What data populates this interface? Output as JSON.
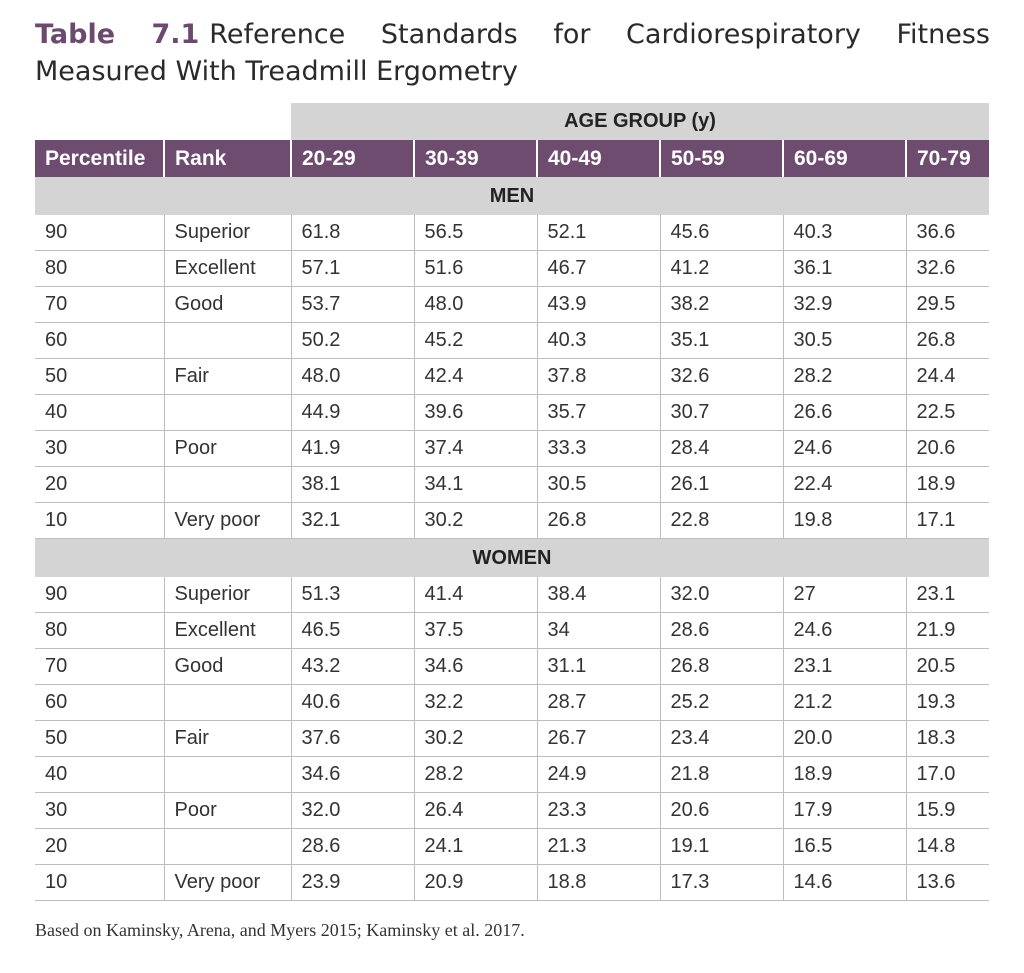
{
  "title": {
    "number": "Table 7.1",
    "text": "Reference Standards for Cardiorespiratory Fitness Measured With Treadmill Ergometry"
  },
  "table": {
    "age_group_label": "AGE GROUP (y)",
    "headers": [
      "Percentile",
      "Rank",
      "20-29",
      "30-39",
      "40-49",
      "50-59",
      "60-69",
      "70-79"
    ],
    "sections": [
      {
        "label": "MEN",
        "rows": [
          [
            "90",
            "Superior",
            "61.8",
            "56.5",
            "52.1",
            "45.6",
            "40.3",
            "36.6"
          ],
          [
            "80",
            "Excellent",
            "57.1",
            "51.6",
            "46.7",
            "41.2",
            "36.1",
            "32.6"
          ],
          [
            "70",
            "Good",
            "53.7",
            "48.0",
            "43.9",
            "38.2",
            "32.9",
            "29.5"
          ],
          [
            "60",
            "",
            "50.2",
            "45.2",
            "40.3",
            "35.1",
            "30.5",
            "26.8"
          ],
          [
            "50",
            "Fair",
            "48.0",
            "42.4",
            "37.8",
            "32.6",
            "28.2",
            "24.4"
          ],
          [
            "40",
            "",
            "44.9",
            "39.6",
            "35.7",
            "30.7",
            "26.6",
            "22.5"
          ],
          [
            "30",
            "Poor",
            "41.9",
            "37.4",
            "33.3",
            "28.4",
            "24.6",
            "20.6"
          ],
          [
            "20",
            "",
            "38.1",
            "34.1",
            "30.5",
            "26.1",
            "22.4",
            "18.9"
          ],
          [
            "10",
            "Very poor",
            "32.1",
            "30.2",
            "26.8",
            "22.8",
            "19.8",
            "17.1"
          ]
        ]
      },
      {
        "label": "WOMEN",
        "rows": [
          [
            "90",
            "Superior",
            "51.3",
            "41.4",
            "38.4",
            "32.0",
            "27",
            "23.1"
          ],
          [
            "80",
            "Excellent",
            "46.5",
            "37.5",
            "34",
            "28.6",
            "24.6",
            "21.9"
          ],
          [
            "70",
            "Good",
            "43.2",
            "34.6",
            "31.1",
            "26.8",
            "23.1",
            "20.5"
          ],
          [
            "60",
            "",
            "40.6",
            "32.2",
            "28.7",
            "25.2",
            "21.2",
            "19.3"
          ],
          [
            "50",
            "Fair",
            "37.6",
            "30.2",
            "26.7",
            "23.4",
            "20.0",
            "18.3"
          ],
          [
            "40",
            "",
            "34.6",
            "28.2",
            "24.9",
            "21.8",
            "18.9",
            "17.0"
          ],
          [
            "30",
            "Poor",
            "32.0",
            "26.4",
            "23.3",
            "20.6",
            "17.9",
            "15.9"
          ],
          [
            "20",
            "",
            "28.6",
            "24.1",
            "21.3",
            "19.1",
            "16.5",
            "14.8"
          ],
          [
            "10",
            "Very poor",
            "23.9",
            "20.9",
            "18.8",
            "17.3",
            "14.6",
            "13.6"
          ]
        ]
      }
    ]
  },
  "source": "Based on Kaminsky, Arena, and Myers 2015; Kaminsky et al. 2017.",
  "colors": {
    "header_bg": "#6e4c70",
    "title_accent": "#6c4a6e",
    "band_bg": "#d4d4d4"
  }
}
